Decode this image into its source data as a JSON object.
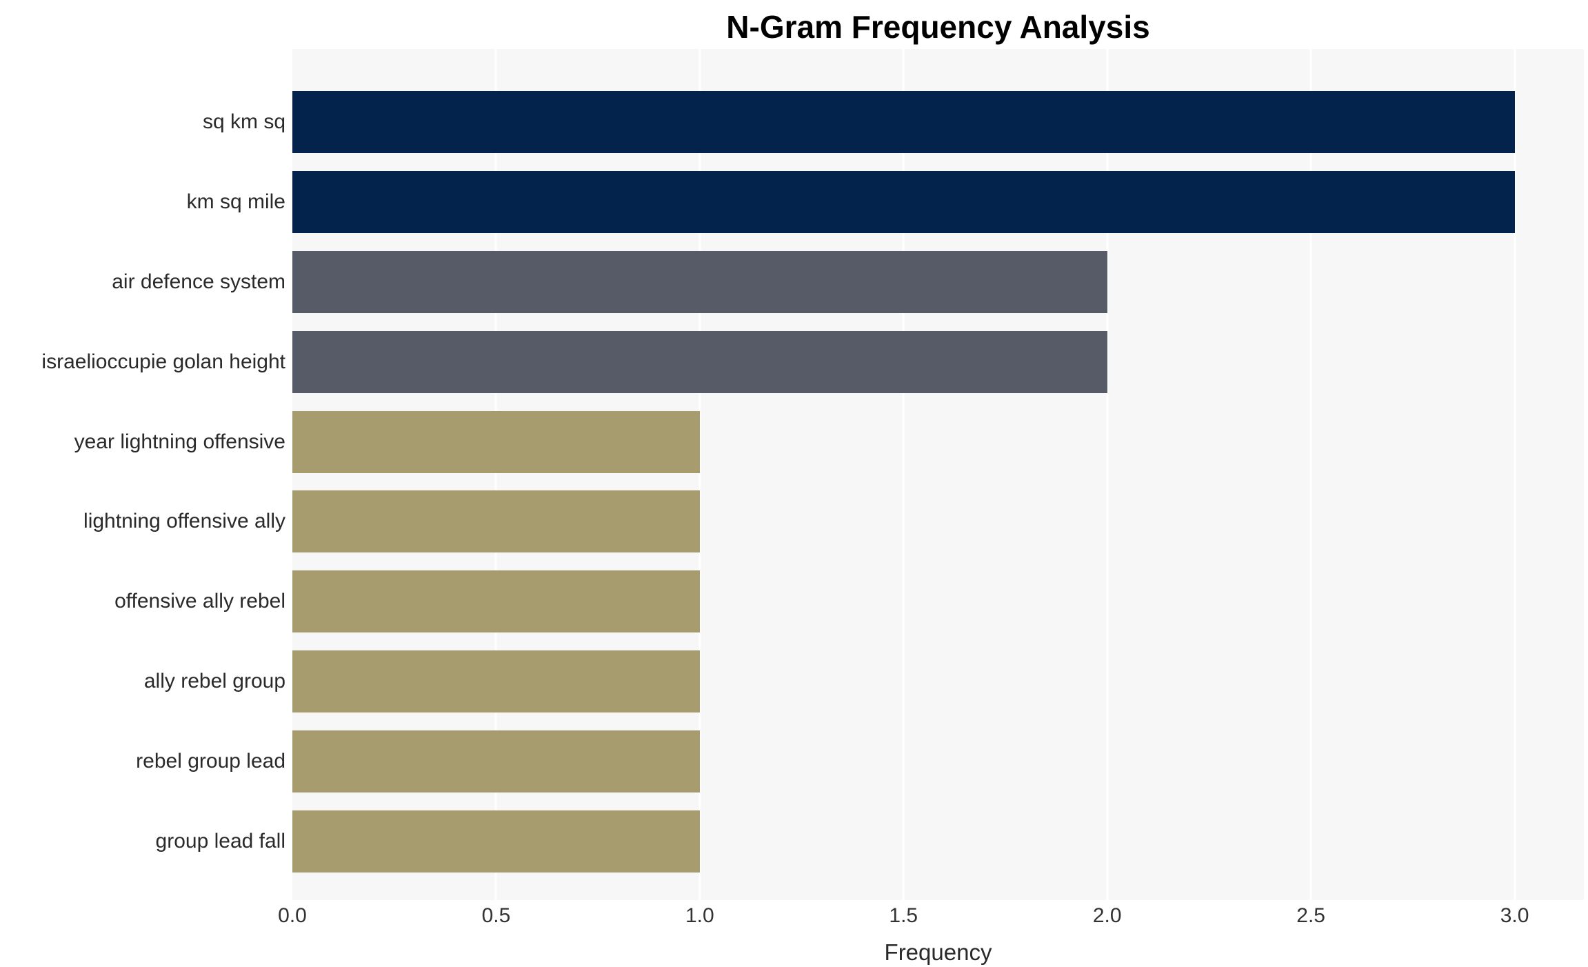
{
  "chart_data": {
    "type": "bar",
    "orientation": "horizontal",
    "title": "N-Gram Frequency Analysis",
    "xlabel": "Frequency",
    "ylabel": "",
    "categories": [
      "sq km sq",
      "km sq mile",
      "air defence system",
      "israelioccupie golan height",
      "year lightning offensive",
      "lightning offensive ally",
      "offensive ally rebel",
      "ally rebel group",
      "rebel group lead",
      "group lead fall"
    ],
    "values": [
      3,
      3,
      2,
      2,
      1,
      1,
      1,
      1,
      1,
      1
    ],
    "bar_colors": [
      "#03224c",
      "#03224c",
      "#565b67",
      "#565b67",
      "#a69c6e",
      "#a69c6e",
      "#a69c6e",
      "#a69c6e",
      "#a69c6e",
      "#a69c6e"
    ],
    "xlim": [
      0,
      3.17
    ],
    "xticks": [
      0.0,
      0.5,
      1.0,
      1.5,
      2.0,
      2.5,
      3.0
    ],
    "xtick_labels": [
      "0.0",
      "0.5",
      "1.0",
      "1.5",
      "2.0",
      "2.5",
      "3.0"
    ],
    "grid": true,
    "grid_color": "#ffffff",
    "plot_bg": "#f7f7f8",
    "legend": "none",
    "colors": {
      "freq3": "#03224c",
      "freq2": "#565b67",
      "freq1": "#a69c6e",
      "axis_text": "#333333",
      "label_text": "#2a2a2a"
    }
  }
}
